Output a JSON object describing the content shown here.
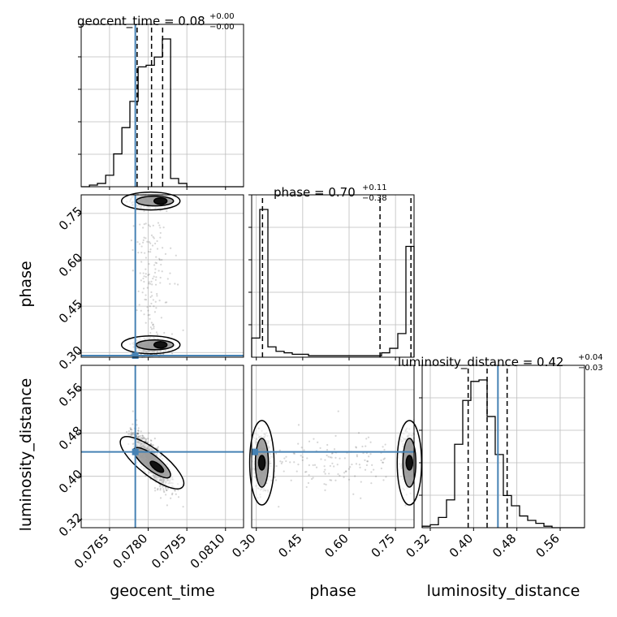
{
  "chart_data": {
    "type": "corner",
    "parameters": [
      "geocent_time",
      "phase",
      "luminosity_distance"
    ],
    "truth": {
      "geocent_time": 0.0775,
      "phase": 0.28,
      "luminosity_distance": 0.445
    },
    "truth_color": "#4682b4",
    "ranges": {
      "geocent_time": [
        0.0754,
        0.0817
      ],
      "phase": [
        0.285,
        0.81
      ],
      "luminosity_distance": [
        0.305,
        0.605
      ]
    },
    "ticks": {
      "geocent_time": {
        "values": [
          0.0765,
          0.078,
          0.0795,
          0.081
        ],
        "labels": [
          "0.0765",
          "0.0780",
          "0.0795",
          "0.0810"
        ]
      },
      "phase": {
        "values": [
          0.3,
          0.45,
          0.6,
          0.75
        ],
        "labels": [
          "0.30",
          "0.45",
          "0.60",
          "0.75"
        ]
      },
      "luminosity_distance": {
        "values": [
          0.32,
          0.4,
          0.48,
          0.56
        ],
        "labels": [
          "0.32",
          "0.40",
          "0.48",
          "0.56"
        ]
      }
    },
    "titles": {
      "geocent_time": {
        "name": "geocent_time = 0.08",
        "sup": "+0.00",
        "sub": "−0.00"
      },
      "phase": {
        "name": "phase = 0.70",
        "sup": "+0.11",
        "sub": "−0.38"
      },
      "luminosity_distance": {
        "name": "luminosity_distance = 0.42",
        "sup": "+0.04",
        "sub": "−0.03"
      }
    },
    "quantiles": {
      "geocent_time": [
        0.07757,
        0.07813,
        0.07856
      ],
      "phase": [
        0.32,
        0.7,
        0.8
      ],
      "luminosity_distance": [
        0.39,
        0.425,
        0.462
      ]
    },
    "histograms": {
      "geocent_time": {
        "edges": [
          0.0754,
          0.07572,
          0.07603,
          0.07635,
          0.07666,
          0.07698,
          0.07729,
          0.07761,
          0.07792,
          0.07824,
          0.07855,
          0.07887,
          0.07918,
          0.0795,
          0.07981,
          0.08013,
          0.08044,
          0.08076,
          0.08107,
          0.08139,
          0.0817
        ],
        "counts": [
          0,
          1,
          2,
          7,
          20,
          36,
          52,
          73,
          74,
          79,
          90,
          5,
          2,
          0,
          0,
          0,
          0,
          0,
          0,
          0
        ]
      },
      "phase": {
        "edges": [
          0.285,
          0.31125,
          0.3375,
          0.36375,
          0.39,
          0.41625,
          0.4425,
          0.46875,
          0.495,
          0.52125,
          0.5475,
          0.57375,
          0.6,
          0.62625,
          0.6525,
          0.67875,
          0.705,
          0.73125,
          0.7575,
          0.78375,
          0.81
        ],
        "counts": [
          13,
          100,
          7,
          4,
          3,
          2,
          2,
          1,
          1,
          1,
          1,
          1,
          1,
          1,
          1,
          1,
          3,
          6,
          16,
          75
        ]
      },
      "luminosity_distance": {
        "edges": [
          0.305,
          0.32,
          0.335,
          0.35,
          0.365,
          0.38,
          0.395,
          0.41,
          0.425,
          0.44,
          0.455,
          0.47,
          0.485,
          0.5,
          0.515,
          0.53,
          0.545,
          0.56,
          0.575,
          0.59,
          0.605
        ],
        "counts": [
          1,
          2,
          7,
          19,
          57,
          87,
          100,
          101,
          76,
          50,
          22,
          15,
          8,
          5,
          3,
          1,
          0,
          0,
          0,
          0
        ]
      }
    }
  }
}
